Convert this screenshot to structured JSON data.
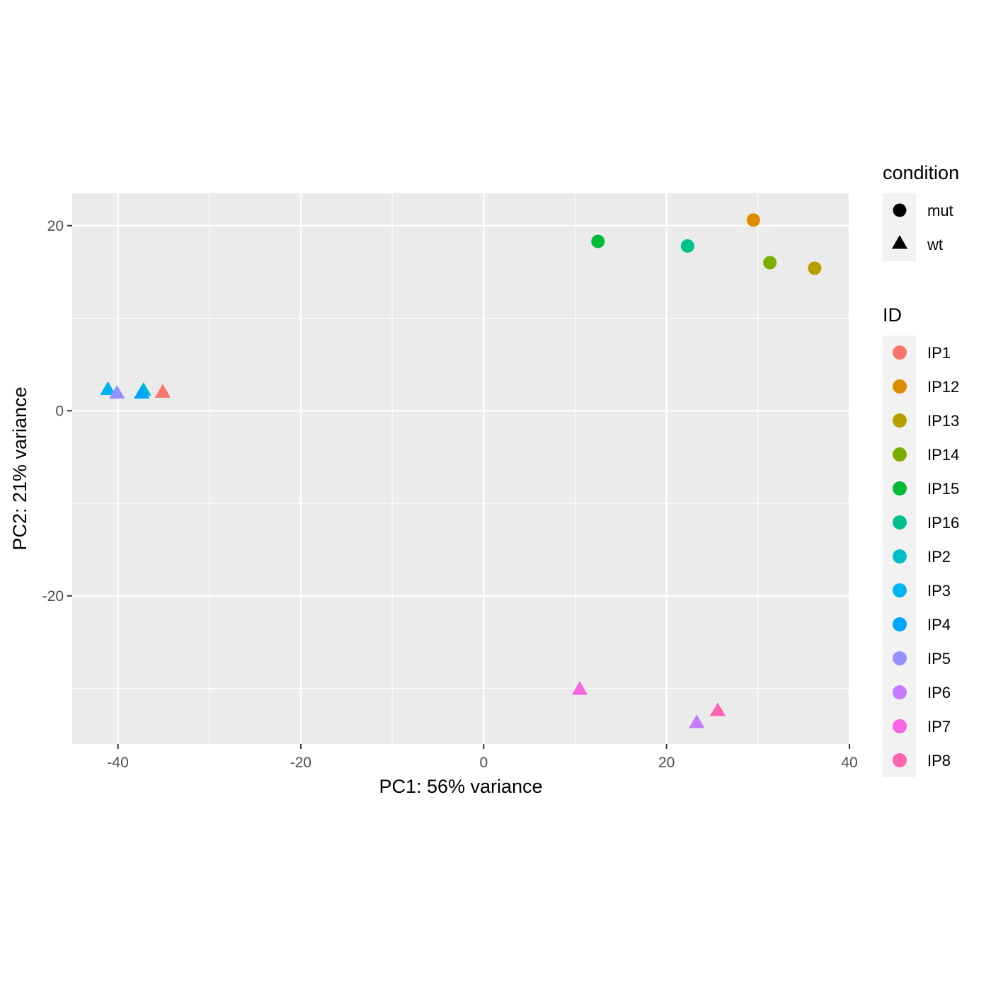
{
  "chart_data": {
    "type": "scatter",
    "title": "",
    "xlabel": "PC1: 56% variance",
    "ylabel": "PC2: 21% variance",
    "xlim": [
      -45,
      40
    ],
    "ylim": [
      -36,
      23.5
    ],
    "xticks": [
      -40,
      -20,
      0,
      20,
      40
    ],
    "yticks": [
      -20,
      0,
      20
    ],
    "xtick_labels": [
      "-40",
      "-20",
      "0",
      "20",
      "40"
    ],
    "ytick_labels": [
      "-20",
      "0",
      "20"
    ],
    "grid": true,
    "panel_background": "#ebebeb",
    "legend_placement": "right",
    "shape_legend": {
      "title": "condition",
      "entries": [
        {
          "label": "mut",
          "shape": "circle"
        },
        {
          "label": "wt",
          "shape": "triangle"
        }
      ]
    },
    "color_legend": {
      "title": "ID",
      "entries": [
        {
          "label": "IP1",
          "color": "#F8766D"
        },
        {
          "label": "IP12",
          "color": "#DE8C00"
        },
        {
          "label": "IP13",
          "color": "#B79F00"
        },
        {
          "label": "IP14",
          "color": "#7CAE00"
        },
        {
          "label": "IP15",
          "color": "#00BA38"
        },
        {
          "label": "IP16",
          "color": "#00C08B"
        },
        {
          "label": "IP2",
          "color": "#00BFC4"
        },
        {
          "label": "IP3",
          "color": "#00B4F0"
        },
        {
          "label": "IP4",
          "color": "#00A5FF"
        },
        {
          "label": "IP5",
          "color": "#9590FF"
        },
        {
          "label": "IP6",
          "color": "#C77CFF"
        },
        {
          "label": "IP7",
          "color": "#F564E3"
        },
        {
          "label": "IP8",
          "color": "#FF64B0"
        }
      ]
    },
    "points": [
      {
        "id": "IP3",
        "condition": "wt",
        "x": -41.1,
        "y": 2.2
      },
      {
        "id": "IP5",
        "condition": "wt",
        "x": -40.1,
        "y": 1.8
      },
      {
        "id": "IP2",
        "condition": "wt",
        "x": -37.2,
        "y": 2.1
      },
      {
        "id": "IP4",
        "condition": "wt",
        "x": -37.4,
        "y": 1.8
      },
      {
        "id": "IP1",
        "condition": "wt",
        "x": -35.1,
        "y": 1.9
      },
      {
        "id": "IP15",
        "condition": "mut",
        "x": 12.5,
        "y": 18.3
      },
      {
        "id": "IP16",
        "condition": "mut",
        "x": 22.3,
        "y": 17.8
      },
      {
        "id": "IP12",
        "condition": "mut",
        "x": 29.5,
        "y": 20.6
      },
      {
        "id": "IP14",
        "condition": "mut",
        "x": 31.3,
        "y": 16.0
      },
      {
        "id": "IP13",
        "condition": "mut",
        "x": 36.2,
        "y": 15.4
      },
      {
        "id": "IP7",
        "condition": "wt",
        "x": 10.5,
        "y": -30.2
      },
      {
        "id": "IP6",
        "condition": "wt",
        "x": 23.3,
        "y": -33.8
      },
      {
        "id": "IP8",
        "condition": "wt",
        "x": 25.6,
        "y": -32.5
      }
    ]
  }
}
